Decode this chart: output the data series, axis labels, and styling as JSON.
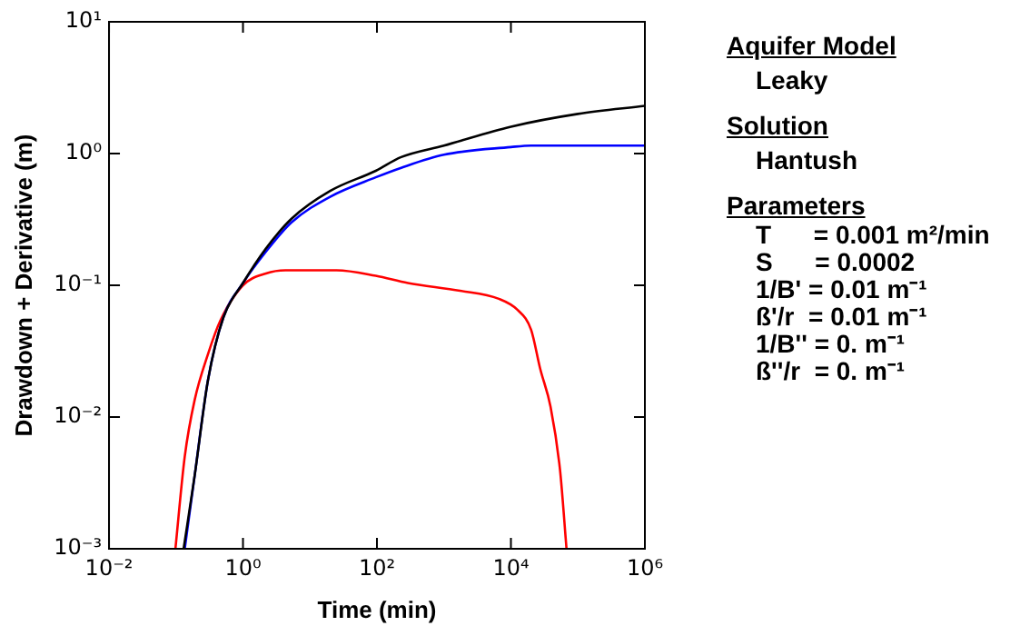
{
  "chart_data": {
    "type": "line",
    "xlabel": "Time (min)",
    "ylabel": "Drawdown + Derivative (m)",
    "log": "xy",
    "grid": false,
    "legend": false,
    "marker": "none",
    "line_style": "solid",
    "xlim": [
      0.01,
      1000000
    ],
    "ylim": [
      0.001,
      10
    ],
    "xticks": [
      {
        "value": 0.01,
        "label": "10⁻²"
      },
      {
        "value": 1,
        "label": "10⁰"
      },
      {
        "value": 100,
        "label": "10²"
      },
      {
        "value": 10000,
        "label": "10⁴"
      },
      {
        "value": 1000000,
        "label": "10⁶"
      }
    ],
    "yticks": [
      {
        "value": 0.001,
        "label": "10⁻³"
      },
      {
        "value": 0.01,
        "label": "10⁻²"
      },
      {
        "value": 0.1,
        "label": "10⁻¹"
      },
      {
        "value": 1,
        "label": "10⁰"
      },
      {
        "value": 10,
        "label": "10¹"
      }
    ],
    "series": [
      {
        "color": "#000000",
        "x": [
          0.13,
          0.19,
          0.3,
          0.51,
          1,
          2.2,
          5.3,
          20,
          96,
          230,
          1000,
          10000,
          100000,
          1000000
        ],
        "values": [
          0.001,
          0.0036,
          0.019,
          0.057,
          0.104,
          0.19,
          0.32,
          0.52,
          0.74,
          0.94,
          1.15,
          1.6,
          2.0,
          2.3
        ]
      },
      {
        "color": "#0000ff",
        "x": [
          0.135,
          0.19,
          0.3,
          0.51,
          1,
          2.2,
          5.3,
          20,
          96,
          230,
          1000,
          10000,
          20000,
          1000000
        ],
        "values": [
          0.001,
          0.0036,
          0.019,
          0.057,
          0.104,
          0.18,
          0.3,
          0.47,
          0.66,
          0.78,
          0.98,
          1.12,
          1.15,
          1.15
        ]
      },
      {
        "color": "#ff0000",
        "x": [
          0.098,
          0.135,
          0.19,
          0.3,
          0.46,
          1,
          2.2,
          4.3,
          25,
          96,
          290,
          1740,
          6600,
          12600,
          20000,
          27500,
          39000,
          54000,
          67600
        ],
        "values": [
          0.001,
          0.005,
          0.0135,
          0.03,
          0.054,
          0.1,
          0.123,
          0.13,
          0.13,
          0.118,
          0.104,
          0.091,
          0.079,
          0.065,
          0.046,
          0.023,
          0.012,
          0.004,
          0.001
        ]
      }
    ],
    "annotations": [
      "Aquifer Model",
      "Leaky",
      "Solution",
      "Hantush",
      "Parameters",
      "T      = 0.001 m²/min",
      "S      = 0.0002",
      "1/B' = 0.01 m⁻¹",
      "ß'/r  = 0.01 m⁻¹",
      "1/B'' = 0. m⁻¹",
      "ß''/r  = 0. m⁻¹"
    ]
  }
}
